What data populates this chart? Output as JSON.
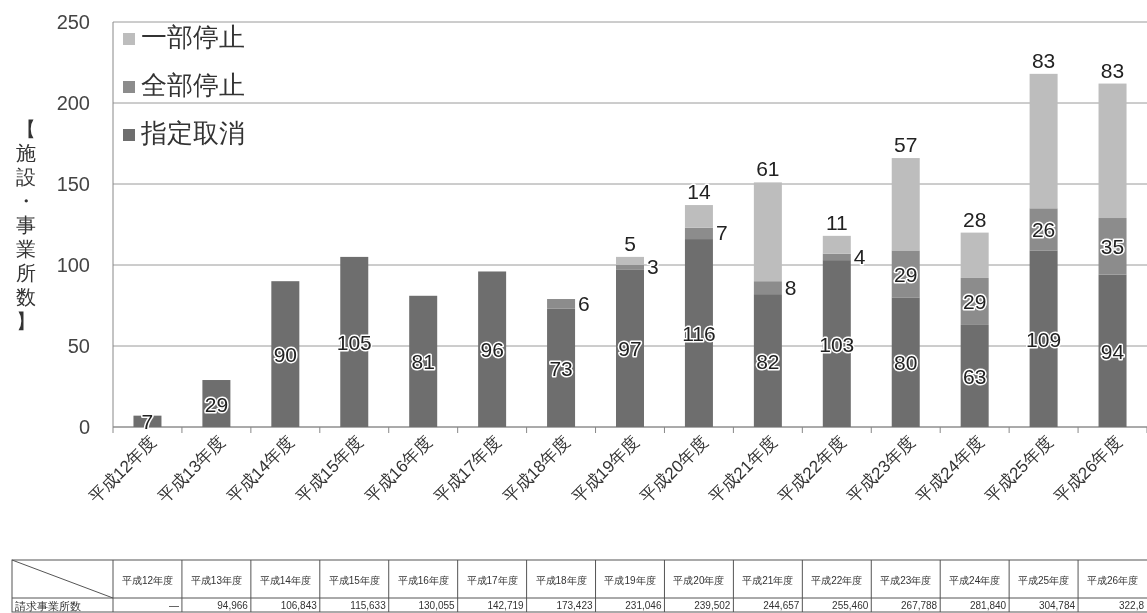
{
  "chart_data": [
    {
      "type": "bar",
      "stacked": true,
      "ylabel": "【施設・事業所数】",
      "categories": [
        "平成12年度",
        "平成13年度",
        "平成14年度",
        "平成15年度",
        "平成16年度",
        "平成17年度",
        "平成18年度",
        "平成19年度",
        "平成20年度",
        "平成21年度",
        "平成22年度",
        "平成23年度",
        "平成24年度",
        "平成25年度",
        "平成26年度"
      ],
      "series": [
        {
          "name": "指定取消",
          "color": "#6e6e6e",
          "values": [
            7,
            29,
            90,
            105,
            81,
            96,
            73,
            97,
            116,
            82,
            103,
            80,
            63,
            109,
            94
          ]
        },
        {
          "name": "全部停止",
          "color": "#8c8c8c",
          "values": [
            null,
            null,
            null,
            null,
            null,
            null,
            6,
            3,
            7,
            8,
            4,
            29,
            29,
            26,
            35
          ]
        },
        {
          "name": "一部停止",
          "color": "#bdbdbd",
          "values": [
            null,
            null,
            null,
            null,
            null,
            null,
            null,
            5,
            14,
            61,
            11,
            57,
            28,
            83,
            83
          ]
        }
      ],
      "ylim": [
        0,
        250
      ],
      "yticks": [
        0,
        50,
        100,
        150,
        200,
        250
      ],
      "grid": "y",
      "legend": "top left",
      "data_labels": true
    },
    {
      "type": "other",
      "ylabel": "請求事業所数",
      "categories": [
        "平成12年度",
        "平成13年度",
        "平成14年度",
        "平成15年度",
        "平成16年度",
        "平成17年度",
        "平成18年度",
        "平成19年度",
        "平成20年度",
        "平成21年度",
        "平成22年度",
        "平成23年度",
        "平成24年度",
        "平成25年度",
        "平成26年度"
      ],
      "value_labels": [
        "—",
        "94,966",
        "106,843",
        "115,633",
        "130,055",
        "142,719",
        "173,423",
        "231,046",
        "239,502",
        "244,657",
        "255,460",
        "267,788",
        "281,840",
        "304,784",
        "322,8"
      ]
    }
  ]
}
